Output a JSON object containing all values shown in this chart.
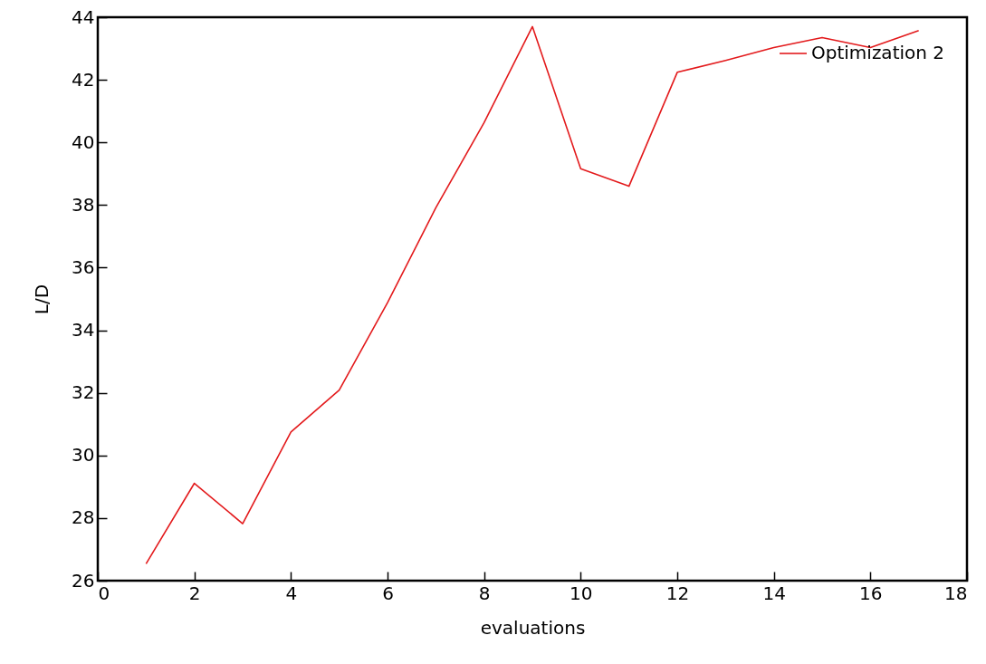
{
  "chart_data": {
    "type": "line",
    "xlabel": "evaluations",
    "ylabel": "L/D",
    "x": [
      1,
      2,
      3,
      4,
      5,
      6,
      7,
      8,
      9,
      10,
      11,
      12,
      13,
      14,
      15,
      16,
      17
    ],
    "series": [
      {
        "name": "Optimization 2",
        "color": "#e31a1c",
        "values": [
          26.54,
          29.11,
          27.82,
          30.75,
          32.09,
          34.88,
          37.91,
          40.63,
          43.7,
          39.16,
          38.6,
          42.24,
          42.62,
          43.03,
          43.35,
          43.03,
          43.57
        ]
      }
    ],
    "xlim": [
      0,
      18
    ],
    "xticks": [
      0,
      2,
      4,
      6,
      8,
      10,
      12,
      14,
      16,
      18
    ],
    "ylim": [
      26,
      44
    ],
    "yticks": [
      26,
      28,
      30,
      32,
      34,
      36,
      38,
      40,
      42,
      44
    ],
    "grid": false,
    "legend": "top right",
    "marker": "none",
    "line_style": "solid"
  }
}
